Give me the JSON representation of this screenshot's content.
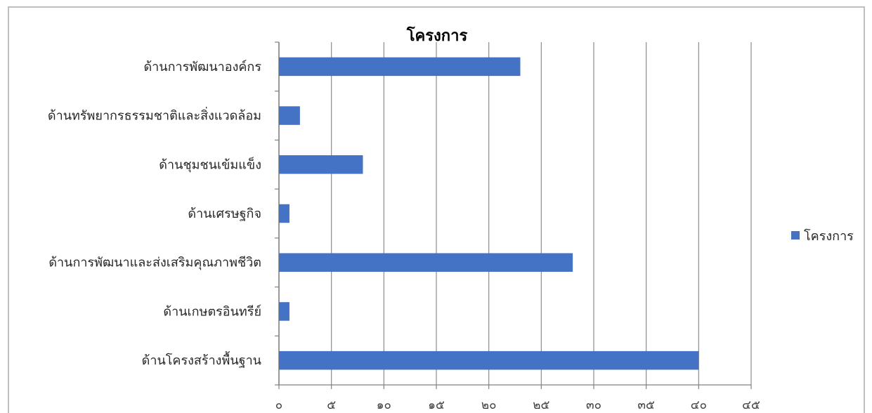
{
  "chart_data": {
    "type": "bar",
    "orientation": "horizontal",
    "title": "โครงการ",
    "categories": [
      "ด้านการพัฒนาองค์กร",
      "ด้านทรัพยากรธรรมชาติและสิ่งแวดล้อม",
      "ด้านชุมชนเข้มแข็ง",
      "ด้านเศรษฐกิจ",
      "ด้านการพัฒนาและส่งเสริมคุณภาพชีวิต",
      "ด้านเกษตรอินทรีย์",
      "ด้านโครงสร้างพื้นฐาน"
    ],
    "series": [
      {
        "name": "โครงการ",
        "values": [
          23,
          2,
          8,
          1,
          28,
          1,
          40
        ],
        "color": "#4472c4"
      }
    ],
    "xlim": [
      0,
      45
    ],
    "xticks": [
      0,
      5,
      10,
      15,
      20,
      25,
      30,
      35,
      40,
      45
    ],
    "xtick_labels": [
      "๐",
      "๕",
      "๑๐",
      "๑๕",
      "๒๐",
      "๒๕",
      "๓๐",
      "๓๕",
      "๔๐",
      "๔๕"
    ],
    "grid": "vertical",
    "legend_position": "right"
  }
}
